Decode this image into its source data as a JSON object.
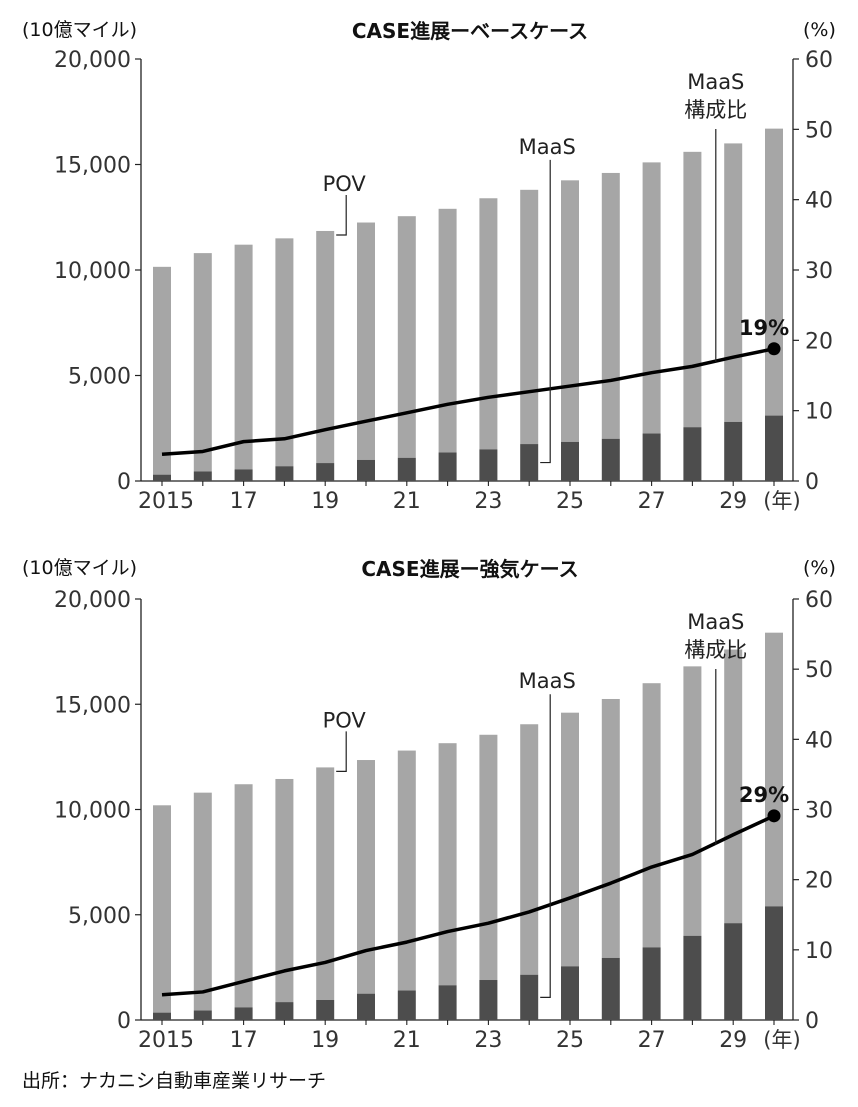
{
  "source_note": "出所：ナカニシ自動車産業リサーチ",
  "chart_data": [
    {
      "type": "bar",
      "title": "CASE進展ーベースケース",
      "left_unit": "(10億マイル)",
      "right_unit": "(%)",
      "x_unit": "(年)",
      "years": [
        2015,
        2016,
        2017,
        2018,
        2019,
        2020,
        2021,
        2022,
        2023,
        2024,
        2025,
        2026,
        2027,
        2028,
        2029,
        2030
      ],
      "x_tick_labels": [
        "2015",
        "",
        "17",
        "",
        "19",
        "",
        "21",
        "",
        "23",
        "",
        "25",
        "",
        "27",
        "",
        "29",
        ""
      ],
      "left_ticks": [
        "0",
        "5,000",
        "10,000",
        "15,000",
        "20,000"
      ],
      "right_ticks": [
        "0",
        "10",
        "20",
        "30",
        "40",
        "50",
        "60"
      ],
      "ylim_left": [
        0,
        20000
      ],
      "ylim_right": [
        0,
        60
      ],
      "stacked": true,
      "series": [
        {
          "name": "MaaS",
          "values": [
            300,
            450,
            550,
            700,
            850,
            1000,
            1100,
            1350,
            1500,
            1750,
            1850,
            2000,
            2250,
            2550,
            2800,
            3100
          ]
        },
        {
          "name": "POV",
          "values": [
            9850,
            10350,
            10650,
            10800,
            11000,
            11250,
            11450,
            11550,
            11900,
            12050,
            12400,
            12600,
            12850,
            13050,
            13200,
            13600
          ]
        }
      ],
      "line": {
        "name": "MaaS構成比",
        "values": [
          3.8,
          4.2,
          5.6,
          6.0,
          7.3,
          8.5,
          9.7,
          10.9,
          11.9,
          12.7,
          13.5,
          14.3,
          15.4,
          16.3,
          17.6,
          18.8
        ]
      },
      "labels": {
        "pov": "POV",
        "maas": "MaaS",
        "ratio_line1": "MaaS",
        "ratio_line2": "構成比",
        "endpoint": "19%"
      }
    },
    {
      "type": "bar",
      "title": "CASE進展ー強気ケース",
      "left_unit": "(10億マイル)",
      "right_unit": "(%)",
      "x_unit": "(年)",
      "years": [
        2015,
        2016,
        2017,
        2018,
        2019,
        2020,
        2021,
        2022,
        2023,
        2024,
        2025,
        2026,
        2027,
        2028,
        2029,
        2030
      ],
      "x_tick_labels": [
        "2015",
        "",
        "17",
        "",
        "19",
        "",
        "21",
        "",
        "23",
        "",
        "25",
        "",
        "27",
        "",
        "29",
        ""
      ],
      "left_ticks": [
        "0",
        "5,000",
        "10,000",
        "15,000",
        "20,000"
      ],
      "right_ticks": [
        "0",
        "10",
        "20",
        "30",
        "40",
        "50",
        "60"
      ],
      "ylim_left": [
        0,
        20000
      ],
      "ylim_right": [
        0,
        60
      ],
      "stacked": true,
      "series": [
        {
          "name": "MaaS",
          "values": [
            350,
            450,
            600,
            850,
            950,
            1250,
            1400,
            1650,
            1900,
            2150,
            2550,
            2950,
            3450,
            4000,
            4600,
            5400
          ]
        },
        {
          "name": "POV",
          "values": [
            9850,
            10350,
            10600,
            10600,
            11050,
            11100,
            11400,
            11500,
            11650,
            11900,
            12050,
            12300,
            12550,
            12800,
            13000,
            13000
          ]
        }
      ],
      "line": {
        "name": "MaaS構成比",
        "values": [
          3.6,
          4.0,
          5.5,
          7.0,
          8.2,
          9.9,
          11.1,
          12.6,
          13.8,
          15.4,
          17.4,
          19.5,
          21.8,
          23.6,
          26.4,
          29.1
        ]
      },
      "labels": {
        "pov": "POV",
        "maas": "MaaS",
        "ratio_line1": "MaaS",
        "ratio_line2": "構成比",
        "endpoint": "29%"
      }
    }
  ]
}
